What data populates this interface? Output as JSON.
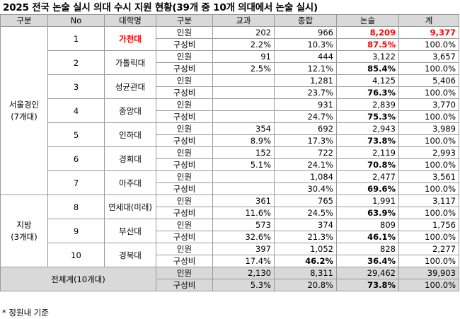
{
  "title": "2025 전국 논술 실시 의대 수시 지원 현황(39개 중 10개 의대에서 논술 실시)",
  "headers": [
    "구분",
    "No",
    "대학명",
    "구분",
    "교과",
    "종합",
    "논술",
    "계"
  ],
  "groups": [
    {
      "label": "서울경인\n(7개대)",
      "schools": [
        {
          "no": "1",
          "name": "가천대",
          "highlight": true,
          "applicants": {
            "type": "인원",
            "gyogwa": "202",
            "jonghap": "966",
            "nonsul": "8,209",
            "total": "9,377"
          },
          "ratio": {
            "type": "구성비",
            "gyogwa": "2.2%",
            "jonghap": "10.3%",
            "nonsul": "87.5%",
            "total": "100.0%"
          }
        },
        {
          "no": "2",
          "name": "가톨릭대",
          "applicants": {
            "type": "인원",
            "gyogwa": "91",
            "jonghap": "444",
            "nonsul": "3,122",
            "total": "3,657"
          },
          "ratio": {
            "type": "구성비",
            "gyogwa": "2.5%",
            "jonghap": "12.1%",
            "nonsul": "85.4%",
            "total": "100.0%"
          }
        },
        {
          "no": "3",
          "name": "성균관대",
          "applicants": {
            "type": "인원",
            "gyogwa": "",
            "jonghap": "1,281",
            "nonsul": "4,125",
            "total": "5,406"
          },
          "ratio": {
            "type": "구성비",
            "gyogwa": "",
            "jonghap": "23.7%",
            "nonsul": "76.3%",
            "total": "100.0%"
          }
        },
        {
          "no": "4",
          "name": "중앙대",
          "applicants": {
            "type": "인원",
            "gyogwa": "",
            "jonghap": "931",
            "nonsul": "2,839",
            "total": "3,770"
          },
          "ratio": {
            "type": "구성비",
            "gyogwa": "",
            "jonghap": "24.7%",
            "nonsul": "75.3%",
            "total": "100.0%"
          }
        },
        {
          "no": "5",
          "name": "인하대",
          "applicants": {
            "type": "인원",
            "gyogwa": "354",
            "jonghap": "692",
            "nonsul": "2,943",
            "total": "3,989"
          },
          "ratio": {
            "type": "구성비",
            "gyogwa": "8.9%",
            "jonghap": "17.3%",
            "nonsul": "73.8%",
            "total": "100.0%"
          }
        },
        {
          "no": "6",
          "name": "경희대",
          "applicants": {
            "type": "인원",
            "gyogwa": "152",
            "jonghap": "722",
            "nonsul": "2,119",
            "total": "2,993"
          },
          "ratio": {
            "type": "구성비",
            "gyogwa": "5.1%",
            "jonghap": "24.1%",
            "nonsul": "70.8%",
            "total": "100.0%"
          }
        },
        {
          "no": "7",
          "name": "아주대",
          "applicants": {
            "type": "인원",
            "gyogwa": "",
            "jonghap": "1,084",
            "nonsul": "2,477",
            "total": "3,561"
          },
          "ratio": {
            "type": "구성비",
            "gyogwa": "",
            "jonghap": "30.4%",
            "nonsul": "69.6%",
            "total": "100.0%"
          }
        }
      ]
    },
    {
      "label": "지방\n(3개대)",
      "schools": [
        {
          "no": "8",
          "name": "연세대(미래)",
          "applicants": {
            "type": "인원",
            "gyogwa": "361",
            "jonghap": "765",
            "nonsul": "1,991",
            "total": "3,117"
          },
          "ratio": {
            "type": "구성비",
            "gyogwa": "11.6%",
            "jonghap": "24.5%",
            "nonsul": "63.9%",
            "total": "100.0%"
          }
        },
        {
          "no": "9",
          "name": "부산대",
          "applicants": {
            "type": "인원",
            "gyogwa": "573",
            "jonghap": "374",
            "nonsul": "809",
            "total": "1,756"
          },
          "ratio": {
            "type": "구성비",
            "gyogwa": "32.6%",
            "jonghap": "21.3%",
            "nonsul": "46.1%",
            "total": "100.0%"
          }
        },
        {
          "no": "10",
          "name": "경북대",
          "applicants": {
            "type": "인원",
            "gyogwa": "397",
            "jonghap": "1,052",
            "nonsul": "828",
            "total": "2,277"
          },
          "ratio": {
            "type": "구성비",
            "gyogwa": "17.4%",
            "jonghap": "46.2%",
            "nonsul": "36.4%",
            "total": "100.0%"
          },
          "bold_jonghap_ratio": true
        }
      ]
    }
  ],
  "total": {
    "label": "전체계(10개대)",
    "applicants": {
      "type": "인원",
      "gyogwa": "2,130",
      "jonghap": "8,311",
      "nonsul": "29,462",
      "total": "39,903"
    },
    "ratio": {
      "type": "구성비",
      "gyogwa": "5.3%",
      "jonghap": "20.8%",
      "nonsul": "73.8%",
      "total": "100.0%"
    }
  },
  "footnote": "* 정원내 기준",
  "colors": {
    "header_bg": "#d9d9d9",
    "highlight": "#ff0000",
    "border": "#9a9a9a"
  }
}
